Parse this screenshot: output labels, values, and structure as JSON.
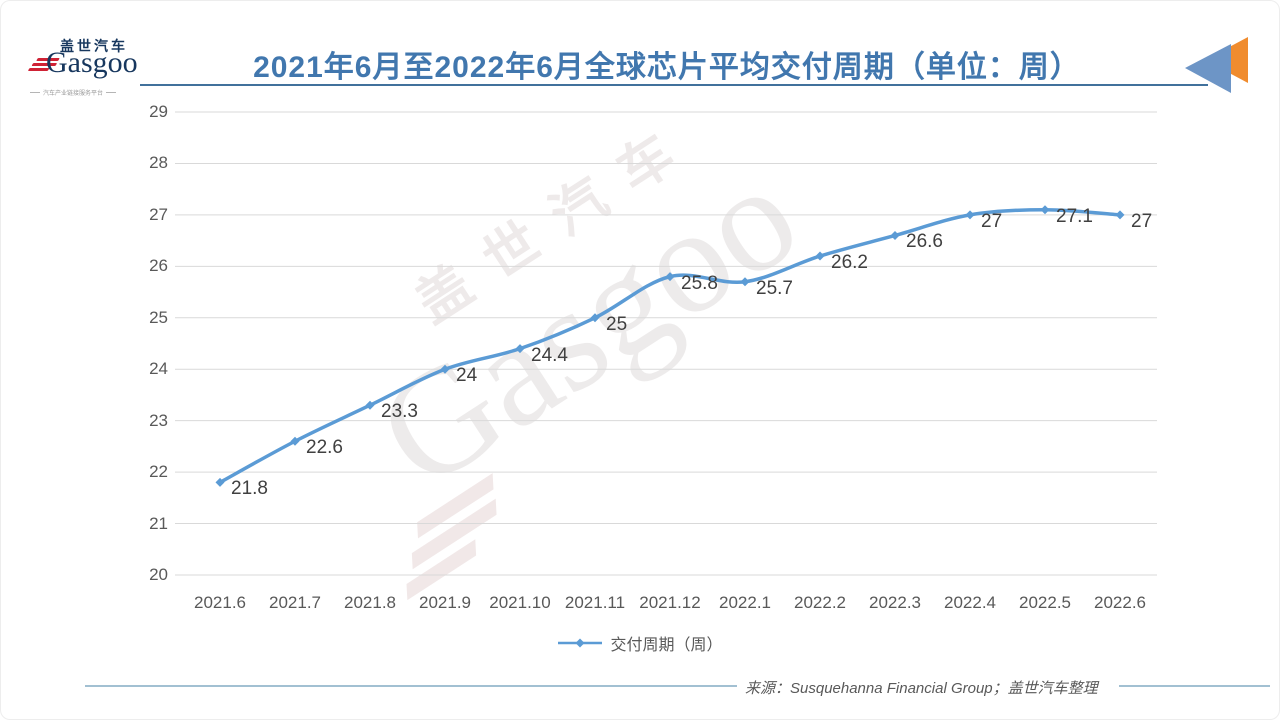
{
  "logo": {
    "cn": "盖世汽车",
    "en": "Gasgoo",
    "tagline": "汽车产业链接服务平台"
  },
  "header": {
    "title": "2021年6月至2022年6月全球芯片平均交付周期（单位：周）"
  },
  "watermark": {
    "cn": "盖世汽车",
    "en": "Gasgoo"
  },
  "chart_data": {
    "type": "line",
    "title": "2021年6月至2022年6月全球芯片平均交付周期（单位：周）",
    "categories": [
      "2021.6",
      "2021.7",
      "2021.8",
      "2021.9",
      "2021.10",
      "2021.11",
      "2021.12",
      "2022.1",
      "2022.2",
      "2022.3",
      "2022.4",
      "2022.5",
      "2022.6"
    ],
    "series": [
      {
        "name": "交付周期（周）",
        "values": [
          21.8,
          22.6,
          23.3,
          24,
          24.4,
          25,
          25.8,
          25.7,
          26.2,
          26.6,
          27,
          27.1,
          27
        ]
      }
    ],
    "ylim": [
      20,
      29
    ],
    "ytick_step": 1,
    "grid": true,
    "legend_position": "bottom",
    "line_color": "#5b9bd5",
    "grid_color": "#d9d9d9",
    "tick_color": "#595959",
    "data_label_color": "#404040"
  },
  "legend": {
    "label": "交付周期（周）"
  },
  "footer": {
    "source": "来源：Susquehanna Financial Group；盖世汽车整理"
  },
  "decor": {
    "triangle_orange": "#f08c2e",
    "triangle_blue": "#6d95c6"
  }
}
